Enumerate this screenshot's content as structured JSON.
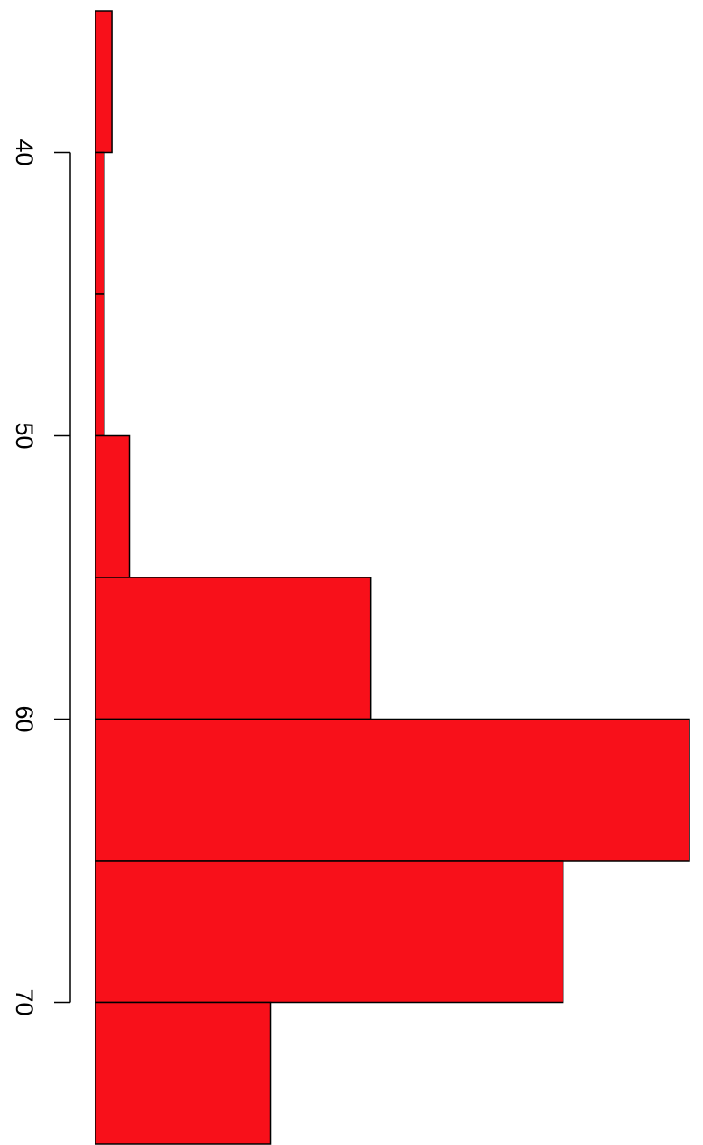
{
  "chart_data": {
    "type": "bar",
    "orientation": "horizontal",
    "bins": [
      {
        "from": 35,
        "to": 40,
        "count": 1.3
      },
      {
        "from": 40,
        "to": 45,
        "count": 0.7
      },
      {
        "from": 45,
        "to": 50,
        "count": 0.7
      },
      {
        "from": 50,
        "to": 55,
        "count": 2.7
      },
      {
        "from": 55,
        "to": 60,
        "count": 22.0
      },
      {
        "from": 60,
        "to": 65,
        "count": 47.5
      },
      {
        "from": 65,
        "to": 70,
        "count": 37.4
      },
      {
        "from": 70,
        "to": 75,
        "count": 14.0
      }
    ],
    "value_axis_range": [
      0,
      47.5
    ],
    "category_axis_range": [
      35,
      75
    ],
    "ticks": [
      {
        "value": 40,
        "label": "40"
      },
      {
        "value": 50,
        "label": "50"
      },
      {
        "value": 60,
        "label": "60"
      },
      {
        "value": 70,
        "label": "70"
      }
    ],
    "title": "",
    "xlabel": "",
    "ylabel": "",
    "grid": false,
    "legend": "none",
    "colors": {
      "bar_fill": "#f8101a",
      "bar_stroke": "#000000",
      "axis": "#000000"
    }
  }
}
